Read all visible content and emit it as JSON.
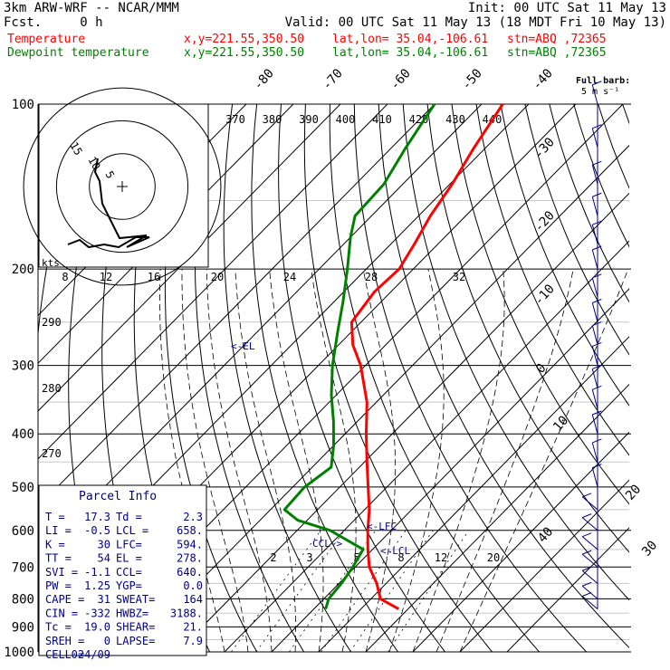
{
  "header": {
    "model": "3km ARW-WRF -- NCAR/MMM",
    "init": "Init: 00 UTC Sat 11 May 13",
    "fcst": "Fcst.     0 h",
    "valid": "Valid: 00 UTC Sat 11 May 13 (18 MDT Fri 10 May 13)",
    "temp_label": "Temperature",
    "dew_label": "Dewpoint temperature",
    "xy": "x,y=221.55,350.50",
    "latlon": "lat,lon= 35.04,-106.61",
    "station": "stn=ABQ ,72365",
    "barb_title": "Full barb:",
    "barb_units": "5 m s⁻¹"
  },
  "colors": {
    "temperature": "#ff0000",
    "dewpoint": "#008000",
    "wind": "#000080",
    "grid": "#000000"
  },
  "parcel_info": {
    "title": "Parcel Info",
    "rows": [
      [
        "T  =",
        "17.3",
        "Td =",
        "2.3"
      ],
      [
        "LI =",
        "-0.5",
        "LCL =",
        "658."
      ],
      [
        "K  =",
        "30",
        "LFC=",
        "594."
      ],
      [
        "TT =",
        "54",
        "EL =",
        "278."
      ],
      [
        "SVI =",
        "-1.1",
        "CCL=",
        "640."
      ],
      [
        "PW =",
        "1.25",
        "YGP=",
        "0.0"
      ],
      [
        "CAPE =",
        "31",
        "SWEAT=",
        "164"
      ],
      [
        "CIN =",
        "-332",
        "HWBZ=",
        "3188."
      ],
      [
        "Tc =",
        "19.0",
        "SHEAR=",
        "21."
      ],
      [
        "SREH =",
        "0",
        "LAPSE=",
        "7.9"
      ],
      [
        "CELL =",
        "024/09",
        "",
        ""
      ]
    ]
  },
  "hodograph": {
    "units": "kts",
    "ring_labels": [
      "5",
      "10",
      "15"
    ]
  },
  "annotations": {
    "el": "<-EL",
    "lfc": "<-LFC",
    "lcl": "<-LCL",
    "ccl": "CCL->"
  },
  "chart_data": {
    "type": "line",
    "title": "",
    "y_axis": {
      "label": "",
      "scale": "log",
      "range": [
        1000,
        100
      ],
      "ticks": [
        100,
        200,
        300,
        400,
        500,
        600,
        700,
        800,
        900,
        1000
      ]
    },
    "isotherm_labels": [
      "-80",
      "-70",
      "-60",
      "-50",
      "-40",
      "-30",
      "-20",
      "-10",
      "0",
      "10",
      "20",
      "30",
      "40"
    ],
    "theta_labels": [
      "370",
      "380",
      "390",
      "400",
      "410",
      "420",
      "430",
      "440"
    ],
    "theta_left_labels": [
      "290",
      "280",
      "270"
    ],
    "mixing_ratio_labels_upper": [
      "8",
      "12",
      "16",
      "20",
      "24",
      "28",
      "32"
    ],
    "mixing_ratio_labels_lower": [
      "2",
      "3",
      "5",
      "8",
      "12",
      "20"
    ],
    "series": [
      {
        "name": "Temperature",
        "pressure": [
          835,
          800,
          750,
          700,
          650,
          600,
          550,
          500,
          450,
          400,
          350,
          300,
          275,
          250,
          220,
          200,
          180,
          160,
          140,
          120,
          100
        ],
        "values": [
          18,
          12,
          8,
          3,
          -1,
          -5,
          -9,
          -14,
          -19.5,
          -25.5,
          -32,
          -41,
          -47,
          -52,
          -53.5,
          -53,
          -55,
          -57.5,
          -59.5,
          -62.5,
          -65.5
        ]
      },
      {
        "name": "Dewpoint temperature",
        "pressure": [
          835,
          800,
          750,
          700,
          650,
          600,
          575,
          550,
          500,
          460,
          420,
          380,
          340,
          300,
          260,
          230,
          200,
          175,
          160,
          140,
          120,
          100
        ],
        "values": [
          2.5,
          1,
          0.5,
          -0.5,
          -2,
          -13,
          -22,
          -27,
          -27.5,
          -26,
          -30,
          -35,
          -41,
          -47,
          -53,
          -58,
          -64,
          -70,
          -73.5,
          -74,
          -77,
          -80
        ]
      }
    ],
    "wind_pressure": [
      100,
      120,
      140,
      160,
      180,
      200,
      225,
      250,
      275,
      300,
      330,
      360,
      400,
      450,
      500,
      550,
      600,
      650,
      700,
      750,
      800,
      835
    ],
    "hodograph_kts": [
      [
        -32,
        9
      ],
      [
        -30,
        8
      ],
      [
        -26,
        3
      ],
      [
        -14,
        -9
      ],
      [
        -2,
        -8
      ],
      [
        -1,
        -5
      ],
      [
        -4,
        -6
      ],
      [
        -8,
        -6
      ],
      [
        -12,
        -7
      ],
      [
        -20,
        -9
      ]
    ]
  }
}
